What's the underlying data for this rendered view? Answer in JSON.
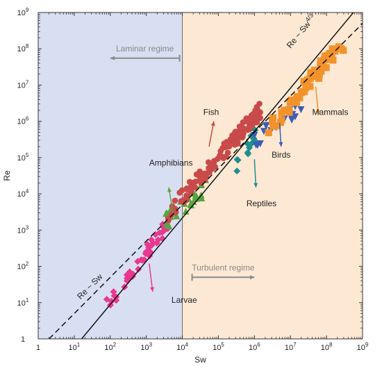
{
  "chart_data": {
    "type": "scatter",
    "xlabel": "Sw",
    "ylabel": "Re",
    "x_scale": "log",
    "y_scale": "log",
    "xlim": [
      1,
      1000000000
    ],
    "ylim": [
      1,
      1000000000
    ],
    "grid": false,
    "x_ticks": [
      {
        "value": 1,
        "base": "1",
        "exp": ""
      },
      {
        "value": 10,
        "base": "10",
        "exp": "1"
      },
      {
        "value": 100,
        "base": "10",
        "exp": "2"
      },
      {
        "value": 1000,
        "base": "10",
        "exp": "3"
      },
      {
        "value": 10000,
        "base": "10",
        "exp": "4"
      },
      {
        "value": 100000,
        "base": "10",
        "exp": "5"
      },
      {
        "value": 1000000,
        "base": "10",
        "exp": "6"
      },
      {
        "value": 10000000,
        "base": "10",
        "exp": "7"
      },
      {
        "value": 100000000,
        "base": "10",
        "exp": "8"
      },
      {
        "value": 1000000000,
        "base": "10",
        "exp": "9"
      }
    ],
    "y_ticks": [
      {
        "value": 1,
        "base": "1",
        "exp": ""
      },
      {
        "value": 10,
        "base": "10",
        "exp": "1"
      },
      {
        "value": 100,
        "base": "10",
        "exp": "2"
      },
      {
        "value": 1000,
        "base": "10",
        "exp": "3"
      },
      {
        "value": 10000,
        "base": "10",
        "exp": "4"
      },
      {
        "value": 100000,
        "base": "10",
        "exp": "5"
      },
      {
        "value": 1000000,
        "base": "10",
        "exp": "6"
      },
      {
        "value": 10000000,
        "base": "10",
        "exp": "7"
      },
      {
        "value": 100000000,
        "base": "10",
        "exp": "8"
      },
      {
        "value": 1000000000,
        "base": "10",
        "exp": "9"
      }
    ],
    "regions": [
      {
        "name": "Laminar regime",
        "x_range": [
          1,
          10000
        ],
        "color": "#d9dff2"
      },
      {
        "name": "Turbulent regime",
        "x_range": [
          10000,
          1000000000
        ],
        "color": "#fde8d4"
      }
    ],
    "region_arrows": [
      {
        "label": "Laminar regime",
        "from": [
          10000,
          55000000
        ],
        "to": [
          100,
          55000000
        ],
        "color": "#8a8a8a"
      },
      {
        "label": "Turbulent regime",
        "from": [
          10000,
          50
        ],
        "to": [
          1000000,
          50
        ],
        "color": "#8a8a8a"
      }
    ],
    "fit_lines": [
      {
        "label_main": "Re ~ Sw",
        "label_exp": "4/3",
        "slope": 1.333,
        "points": [
          [
            16,
            1
          ],
          [
            1000000000,
            2000000000
          ]
        ],
        "style": "solid",
        "label_x": 10000000,
        "label_y": 100000000
      },
      {
        "label_main": "Re ~ Sw",
        "label_exp": "",
        "slope": 1,
        "points": [
          [
            2,
            1
          ],
          [
            1000000000,
            500000000
          ]
        ],
        "style": "dashed",
        "label_x": 15,
        "label_y": 12
      }
    ],
    "series": [
      {
        "name": "Larvae",
        "marker": "diamond",
        "color": "#e8388f",
        "x_range": [
          80,
          4000
        ],
        "y_range": [
          8,
          1500
        ],
        "count": 45
      },
      {
        "name": "Amphibians",
        "marker": "triangle",
        "color": "#59a53f",
        "x_range": [
          3500,
          45000
        ],
        "y_range": [
          1800,
          15000
        ],
        "count": 30
      },
      {
        "name": "Fish",
        "marker": "circle",
        "color": "#c94a4a",
        "x_range": [
          4000,
          1500000
        ],
        "y_range": [
          3000,
          2000000
        ],
        "count": 120
      },
      {
        "name": "Reptiles",
        "marker": "diamond",
        "color": "#1e8f8f",
        "x_range": [
          300000,
          1500000
        ],
        "y_range": [
          60000,
          600000
        ],
        "count": 14
      },
      {
        "name": "Birds",
        "marker": "triangle-down",
        "color": "#3c5db5",
        "x_range": [
          1000000,
          20000000
        ],
        "y_range": [
          300000,
          3000000
        ],
        "count": 18
      },
      {
        "name": "Mammals",
        "marker": "square",
        "color": "#f2922b",
        "x_range": [
          2000000,
          300000000
        ],
        "y_range": [
          500000,
          150000000
        ],
        "count": 60
      }
    ],
    "annotations": [
      {
        "text": "Larvae",
        "color": "#e8388f",
        "label_x": 5000,
        "label_y": 10,
        "arrow_from": [
          1200,
          120
        ],
        "arrow_to": [
          1500,
          20
        ]
      },
      {
        "text": "Amphibians",
        "color": "#59a53f",
        "label_x": 1200,
        "label_y": 60000,
        "arrow_from": [
          5500,
          3000
        ],
        "arrow_to": [
          4200,
          15000
        ]
      },
      {
        "text": "Fish",
        "color": "#c94a4a",
        "label_x": 38000,
        "label_y": 1500000,
        "arrow_from": [
          55000,
          200000
        ],
        "arrow_to": [
          75000,
          1000000
        ]
      },
      {
        "text": "Reptiles",
        "color": "#1e8f8f",
        "label_x": 600000,
        "label_y": 4500,
        "arrow_from": [
          1000000,
          90000
        ],
        "arrow_to": [
          1100000,
          15000
        ]
      },
      {
        "text": "Birds",
        "color": "#3c5db5",
        "label_x": 3000000,
        "label_y": 100000,
        "arrow_from": [
          5000000,
          900000
        ],
        "arrow_to": [
          5500000,
          200000
        ]
      },
      {
        "text": "Mammals",
        "color": "#f2922b",
        "label_x": 40000000,
        "label_y": 1500000,
        "arrow_from": [
          50000000,
          9000000
        ],
        "arrow_to": [
          60000000,
          1500000
        ]
      }
    ]
  }
}
